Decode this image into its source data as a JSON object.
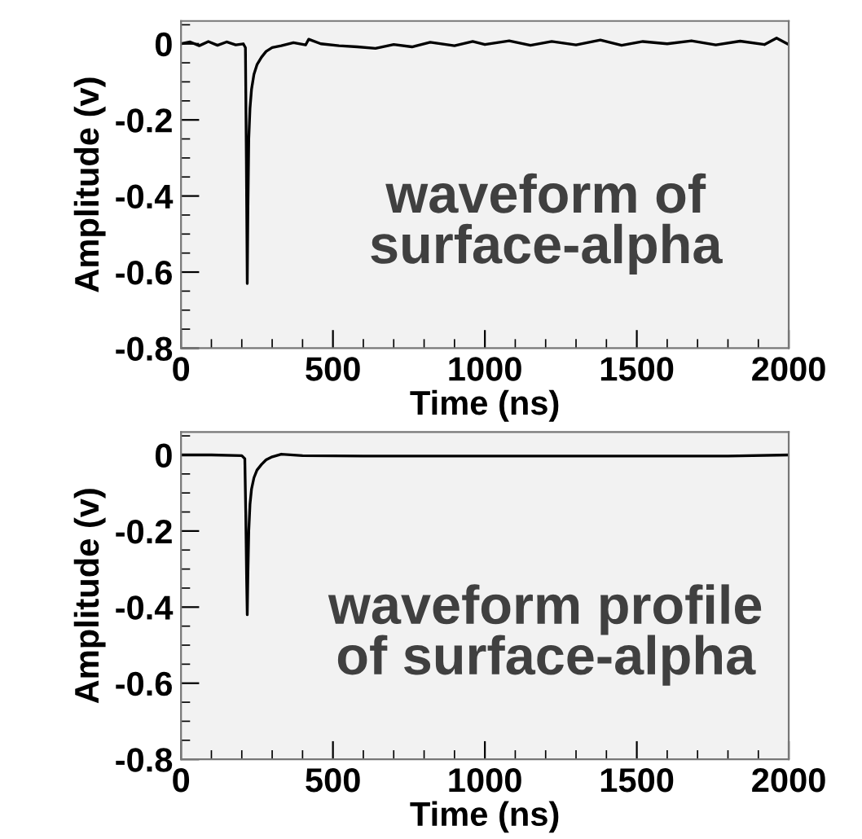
{
  "chart_data": [
    {
      "type": "line",
      "xlabel": "Time (ns)",
      "ylabel": "Amplitude (v)",
      "annotations": [
        "waveform of\nsurface-alpha"
      ],
      "xlim": [
        0,
        2000
      ],
      "ylim": [
        -0.8,
        0.06
      ],
      "xticks": [
        0,
        500,
        1000,
        1500,
        2000
      ],
      "yticks": [
        {
          "value": -0.8,
          "label": "-0.8"
        },
        {
          "value": -0.6,
          "label": "-0.6"
        },
        {
          "value": -0.4,
          "label": "-0.4"
        },
        {
          "value": -0.2,
          "label": "-0.2"
        },
        0
      ],
      "grid": false,
      "marker": "none",
      "line_style": "solid",
      "series": [
        {
          "color": "#000000",
          "x": [
            0,
            30,
            60,
            90,
            120,
            150,
            180,
            205,
            212,
            215,
            218,
            220,
            223,
            227,
            232,
            240,
            250,
            265,
            280,
            300,
            330,
            370,
            410,
            420,
            460,
            520,
            580,
            640,
            700,
            760,
            820,
            900,
            960,
            1000,
            1080,
            1150,
            1220,
            1300,
            1380,
            1450,
            1520,
            1600,
            1680,
            1760,
            1840,
            1920,
            1960,
            2000
          ],
          "values": [
            0.0,
            0.005,
            -0.005,
            0.006,
            -0.004,
            0.005,
            -0.003,
            0.0,
            -0.01,
            -0.3,
            -0.63,
            -0.45,
            -0.25,
            -0.17,
            -0.12,
            -0.08,
            -0.055,
            -0.035,
            -0.02,
            -0.01,
            -0.005,
            0.003,
            -0.003,
            0.012,
            0.0,
            -0.005,
            -0.008,
            -0.012,
            -0.002,
            -0.008,
            0.004,
            -0.005,
            0.006,
            -0.002,
            0.008,
            -0.004,
            0.006,
            -0.003,
            0.01,
            -0.004,
            0.006,
            0.0,
            0.008,
            -0.003,
            0.007,
            -0.002,
            0.015,
            -0.002
          ]
        }
      ]
    },
    {
      "type": "line",
      "xlabel": "Time (ns)",
      "ylabel": "Amplitude (v)",
      "annotations": [
        "waveform profile\nof surface-alpha"
      ],
      "xlim": [
        0,
        2000
      ],
      "ylim": [
        -0.8,
        0.06
      ],
      "xticks": [
        0,
        500,
        1000,
        1500,
        2000
      ],
      "yticks": [
        {
          "value": -0.8,
          "label": "-0.8"
        },
        {
          "value": -0.6,
          "label": "-0.6"
        },
        {
          "value": -0.4,
          "label": "-0.4"
        },
        {
          "value": -0.2,
          "label": "-0.2"
        },
        0
      ],
      "grid": false,
      "marker": "none",
      "line_style": "solid",
      "series": [
        {
          "color": "#000000",
          "x": [
            0,
            100,
            200,
            210,
            213,
            216,
            218,
            220,
            223,
            227,
            232,
            240,
            250,
            265,
            280,
            300,
            330,
            400,
            600,
            1000,
            1500,
            1800,
            2000
          ],
          "values": [
            0.0,
            0.0,
            -0.002,
            -0.01,
            -0.15,
            -0.33,
            -0.42,
            -0.32,
            -0.2,
            -0.13,
            -0.09,
            -0.06,
            -0.04,
            -0.025,
            -0.013,
            -0.005,
            0.002,
            -0.002,
            -0.003,
            -0.003,
            -0.003,
            -0.003,
            0.0
          ]
        }
      ]
    }
  ]
}
